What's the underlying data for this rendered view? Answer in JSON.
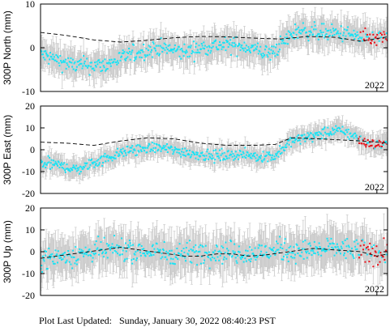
{
  "footer": {
    "prefix": "Plot Last Updated:",
    "timestamp": "Sunday, January 30, 2022 08:40:23 PST"
  },
  "colors": {
    "final_points": "#17e3f5",
    "rapid_points": "#e8121a",
    "error_bars": "#c9c9c9",
    "model_line": "#000000",
    "frame": "#000000"
  },
  "chart_data": [
    {
      "type": "scatter",
      "station": "300P",
      "component": "North",
      "ylabel": "300P North (mm)",
      "ylim": [
        -10,
        10
      ],
      "yticks": [
        -10,
        0,
        10
      ],
      "x_tick_labels": [
        "2022"
      ],
      "x_range": [
        2015.7,
        2022.2
      ],
      "grid": false,
      "legend": "none",
      "trend": {
        "x": [
          2015.7,
          2016.3,
          2016.9,
          2017.4,
          2017.9,
          2018.4,
          2018.9,
          2019.5,
          2020.0,
          2020.5,
          2021.0,
          2021.5,
          2022.0,
          2022.2
        ],
        "y": [
          -1.5,
          -4.0,
          -4.0,
          -1.5,
          0.0,
          -1.0,
          0.5,
          0.5,
          -1.5,
          4.0,
          3.5,
          3.0,
          1.5,
          2.5
        ]
      },
      "model": {
        "x": [
          2015.7,
          2016.2,
          2016.7,
          2017.2,
          2017.7,
          2018.2,
          2018.7,
          2019.2,
          2019.7,
          2020.2,
          2020.7,
          2021.2,
          2021.7,
          2022.2
        ],
        "y": [
          3.5,
          2.8,
          1.8,
          1.3,
          1.7,
          2.3,
          2.6,
          2.5,
          2.2,
          2.0,
          2.6,
          2.4,
          1.5,
          2.5
        ]
      },
      "error_mm": 3.0,
      "rapid_start": 2021.65
    },
    {
      "type": "scatter",
      "station": "300P",
      "component": "East",
      "ylabel": "300P East (mm)",
      "ylim": [
        -20,
        20
      ],
      "yticks": [
        -20,
        -10,
        0,
        10,
        20
      ],
      "x_tick_labels": [
        "2022"
      ],
      "x_range": [
        2015.7,
        2022.2
      ],
      "grid": false,
      "legend": "none",
      "trend": {
        "x": [
          2015.7,
          2016.0,
          2016.4,
          2016.9,
          2017.4,
          2017.9,
          2018.4,
          2018.9,
          2019.4,
          2019.8,
          2020.1,
          2020.4,
          2020.9,
          2021.3,
          2021.6,
          2021.9,
          2022.2
        ],
        "y": [
          -6.0,
          -7.0,
          -9.0,
          -4.0,
          0.0,
          1.0,
          -1.0,
          -3.0,
          -2.0,
          -3.0,
          -3.0,
          4.0,
          7.0,
          9.0,
          6.0,
          2.0,
          3.0
        ]
      },
      "model": {
        "x": [
          2015.7,
          2016.2,
          2016.7,
          2017.2,
          2017.7,
          2018.2,
          2018.7,
          2019.2,
          2019.7,
          2020.1,
          2020.4,
          2020.9,
          2021.3,
          2021.7,
          2022.0,
          2022.2
        ],
        "y": [
          3.5,
          3.0,
          2.0,
          4.0,
          5.5,
          5.0,
          3.0,
          2.0,
          2.0,
          2.5,
          5.5,
          5.0,
          4.5,
          4.0,
          3.5,
          3.0
        ]
      },
      "error_mm": 4.0,
      "rapid_start": 2021.65
    },
    {
      "type": "scatter",
      "station": "300P",
      "component": "Up",
      "ylabel": "300P Up (mm)",
      "ylim": [
        -20,
        20
      ],
      "yticks": [
        -20,
        -10,
        0,
        10,
        20
      ],
      "x_tick_labels": [
        "2022"
      ],
      "x_range": [
        2015.7,
        2022.2
      ],
      "grid": false,
      "legend": "none",
      "trend": {
        "x": [
          2015.7,
          2016.2,
          2016.7,
          2017.2,
          2017.7,
          2018.2,
          2018.7,
          2019.2,
          2019.7,
          2020.2,
          2020.7,
          2021.2,
          2021.7,
          2022.2
        ],
        "y": [
          -3.0,
          -2.0,
          0.0,
          1.0,
          0.0,
          -1.0,
          0.0,
          0.0,
          -1.0,
          1.0,
          0.0,
          2.0,
          0.0,
          -1.0
        ]
      },
      "model": {
        "x": [
          2015.7,
          2016.0,
          2016.3,
          2016.6,
          2016.9,
          2017.2,
          2017.5,
          2017.8,
          2018.1,
          2018.4,
          2018.7,
          2019.0,
          2019.3,
          2019.6,
          2019.9,
          2020.2,
          2020.5,
          2020.8,
          2021.1,
          2021.4,
          2021.7,
          2022.0,
          2022.2
        ],
        "y": [
          -3.0,
          -2.0,
          -1.0,
          0.0,
          1.0,
          2.0,
          1.0,
          0.0,
          -1.0,
          -2.0,
          -2.0,
          -1.0,
          -1.0,
          -2.0,
          -1.5,
          -0.5,
          0.5,
          1.5,
          1.0,
          0.5,
          0.0,
          -2.0,
          -1.0
        ]
      },
      "error_mm": 8.0,
      "rapid_start": 2021.65
    }
  ]
}
